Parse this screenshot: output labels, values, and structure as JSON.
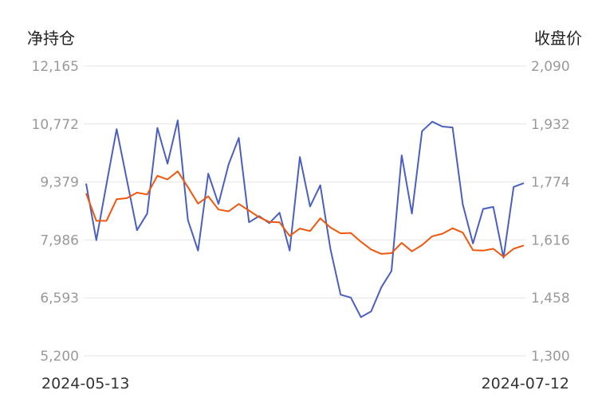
{
  "chart_data": {
    "type": "line",
    "y_left_title": "净持仓",
    "y_right_title": "收盘价",
    "x_start_label": "2024-05-13",
    "x_end_label": "2024-07-12",
    "left_ticks": [
      "12,165",
      "10,772",
      "9,379",
      "7,986",
      "6,593",
      "5,200"
    ],
    "right_ticks": [
      "2,090",
      "1,932",
      "1,774",
      "1,616",
      "1,458",
      "1,300"
    ],
    "left_range": [
      5200,
      12165
    ],
    "right_range": [
      1300,
      2090
    ],
    "grid": true,
    "series": [
      {
        "color": "#4a5fc1",
        "axis": "left",
        "values": [
          9340,
          7980,
          9320,
          10650,
          9430,
          8220,
          8620,
          10680,
          9820,
          10860,
          8460,
          7730,
          9580,
          8850,
          9800,
          10440,
          8410,
          8560,
          8390,
          8640,
          7730,
          9980,
          8790,
          9300,
          7770,
          6670,
          6600,
          6130,
          6270,
          6850,
          7240,
          10020,
          8620,
          10600,
          10830,
          10710,
          10690,
          8840,
          7900,
          8730,
          8780,
          7560,
          9260,
          9350
        ]
      },
      {
        "color": "#f0570b",
        "axis": "right",
        "values": [
          1743,
          1668,
          1668,
          1727,
          1730,
          1745,
          1740,
          1791,
          1781,
          1803,
          1760,
          1715,
          1735,
          1699,
          1694,
          1714,
          1696,
          1678,
          1665,
          1664,
          1627,
          1647,
          1640,
          1675,
          1650,
          1634,
          1635,
          1611,
          1590,
          1578,
          1580,
          1608,
          1585,
          1602,
          1626,
          1633,
          1648,
          1636,
          1588,
          1587,
          1592,
          1570,
          1592,
          1601
        ]
      }
    ]
  }
}
